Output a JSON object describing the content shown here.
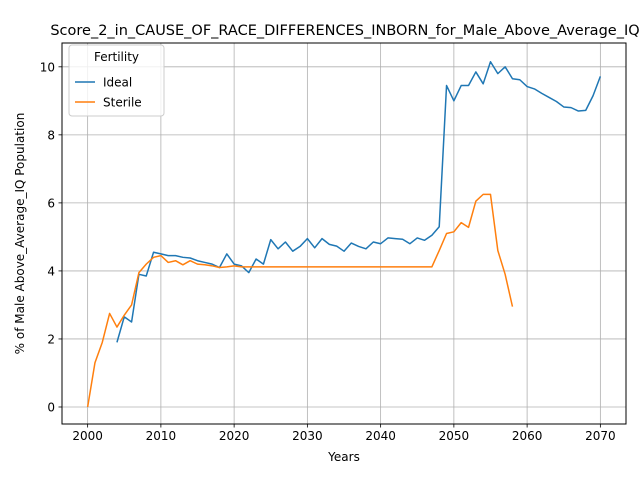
{
  "chart_data": {
    "type": "line",
    "title": "Score_2_in_CAUSE_OF_RACE_DIFFERENCES_INBORN_for_Male_Above_Average_IQ",
    "xlabel": "Years",
    "ylabel": "% of Male Above_Average_IQ Population",
    "xlim": [
      1996.5,
      2073.5
    ],
    "ylim": [
      -0.5,
      10.7
    ],
    "xticks": [
      2000,
      2010,
      2020,
      2030,
      2040,
      2050,
      2060,
      2070
    ],
    "yticks": [
      0,
      2,
      4,
      6,
      8,
      10
    ],
    "grid": true,
    "legend": {
      "title": "Fertility",
      "placement": "top-left"
    },
    "series": [
      {
        "name": "Ideal",
        "color": "#1f77b4",
        "x": [
          2004,
          2005,
          2006,
          2007,
          2008,
          2009,
          2010,
          2011,
          2012,
          2013,
          2014,
          2015,
          2016,
          2017,
          2018,
          2019,
          2020,
          2021,
          2022,
          2023,
          2024,
          2025,
          2026,
          2027,
          2028,
          2029,
          2030,
          2031,
          2032,
          2033,
          2034,
          2035,
          2036,
          2037,
          2038,
          2039,
          2040,
          2041,
          2042,
          2043,
          2044,
          2045,
          2046,
          2047,
          2048,
          2049,
          2050,
          2051,
          2052,
          2053,
          2054,
          2055,
          2056,
          2057,
          2058,
          2059,
          2060,
          2061,
          2062,
          2063,
          2064,
          2065,
          2066,
          2067,
          2068,
          2069,
          2070
        ],
        "y": [
          1.9,
          2.65,
          2.5,
          3.9,
          3.85,
          4.55,
          4.5,
          4.45,
          4.45,
          4.4,
          4.38,
          4.3,
          4.25,
          4.2,
          4.1,
          4.5,
          4.2,
          4.15,
          3.95,
          4.35,
          4.2,
          4.92,
          4.65,
          4.85,
          4.58,
          4.72,
          4.95,
          4.68,
          4.95,
          4.78,
          4.73,
          4.58,
          4.82,
          4.72,
          4.65,
          4.85,
          4.8,
          4.97,
          4.95,
          4.93,
          4.8,
          4.97,
          4.9,
          5.05,
          5.3,
          9.45,
          9.0,
          9.45,
          9.45,
          9.85,
          9.5,
          10.15,
          9.8,
          10.0,
          9.65,
          9.62,
          9.42,
          9.35,
          9.22,
          9.1,
          8.98,
          8.82,
          8.8,
          8.7,
          8.72,
          9.15,
          9.72
        ]
      },
      {
        "name": "Sterile",
        "color": "#ff7f0e",
        "x": [
          2000,
          2001,
          2002,
          2003,
          2004,
          2005,
          2006,
          2007,
          2008,
          2009,
          2010,
          2011,
          2012,
          2013,
          2014,
          2015,
          2016,
          2017,
          2018,
          2019,
          2020,
          2021,
          2022,
          2023,
          2024,
          2025,
          2026,
          2027,
          2028,
          2029,
          2030,
          2031,
          2032,
          2033,
          2034,
          2035,
          2036,
          2037,
          2038,
          2039,
          2040,
          2041,
          2042,
          2043,
          2044,
          2045,
          2046,
          2047,
          2048,
          2049,
          2050,
          2051,
          2052,
          2053,
          2054,
          2055,
          2056,
          2057,
          2058
        ],
        "y": [
          0.0,
          1.3,
          1.9,
          2.75,
          2.35,
          2.7,
          3.0,
          3.95,
          4.2,
          4.4,
          4.45,
          4.25,
          4.3,
          4.18,
          4.3,
          4.2,
          4.18,
          4.15,
          4.1,
          4.12,
          4.15,
          4.12,
          4.12,
          4.12,
          4.12,
          4.12,
          4.12,
          4.12,
          4.12,
          4.12,
          4.12,
          4.12,
          4.12,
          4.12,
          4.12,
          4.12,
          4.12,
          4.12,
          4.12,
          4.12,
          4.12,
          4.12,
          4.12,
          4.12,
          4.12,
          4.12,
          4.12,
          4.12,
          4.6,
          5.1,
          5.15,
          5.42,
          5.28,
          6.05,
          6.25,
          6.25,
          4.6,
          3.9,
          2.95
        ]
      }
    ]
  }
}
